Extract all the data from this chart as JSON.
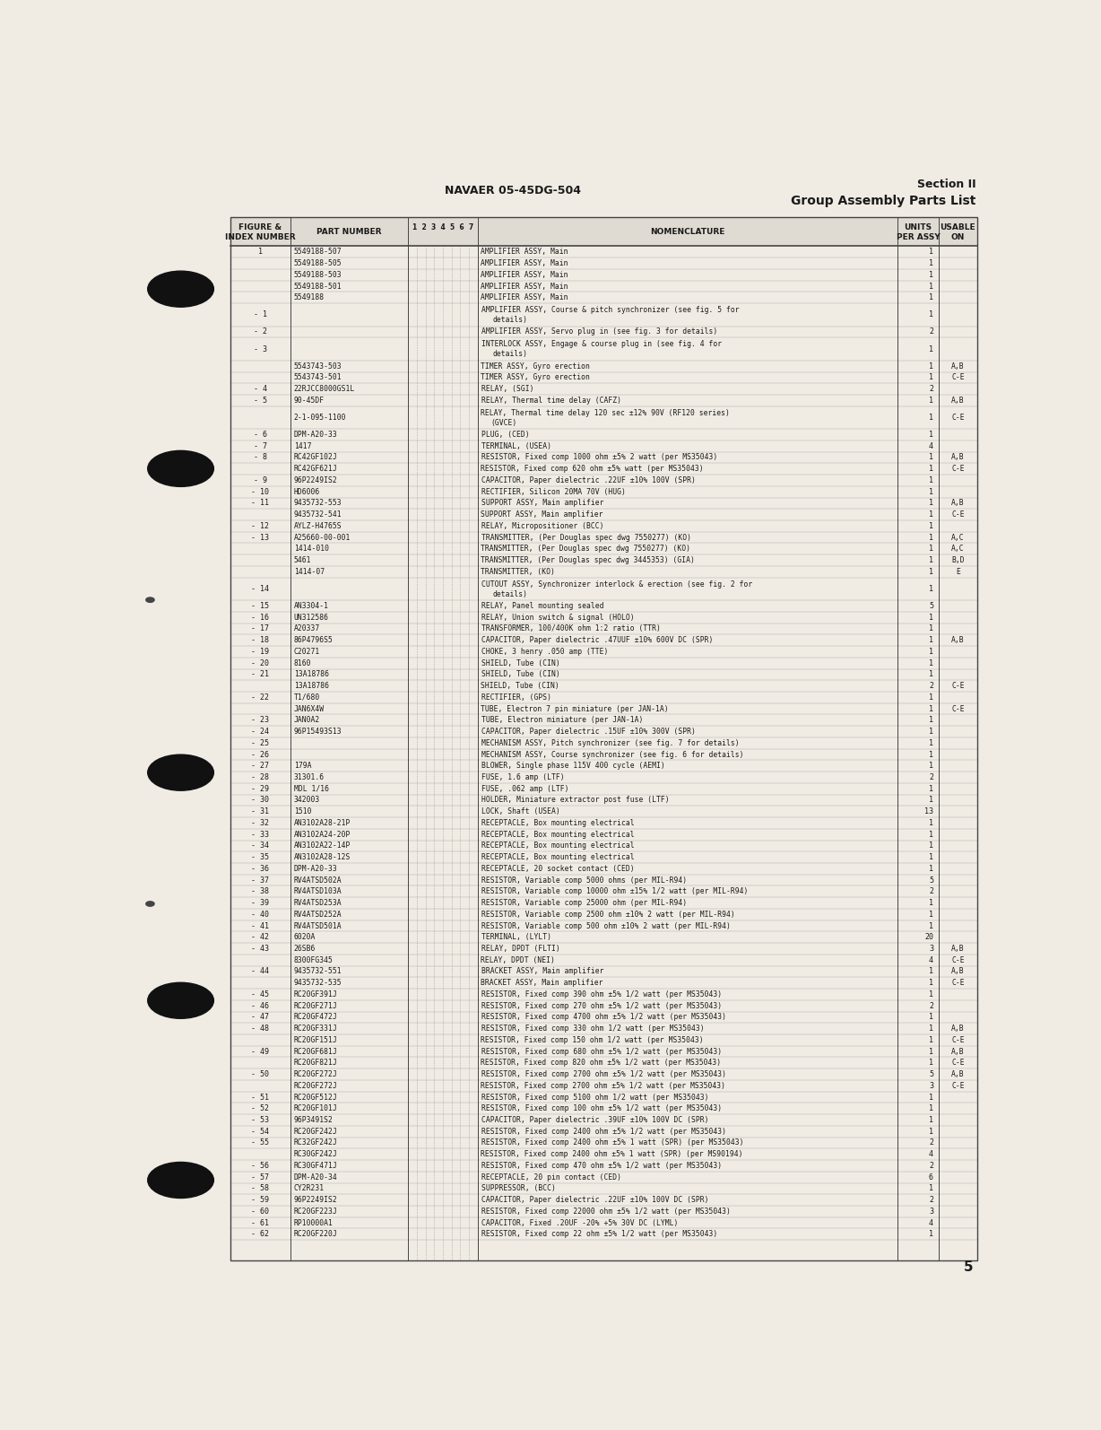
{
  "header_left": "NAVAER 05-45DG-504",
  "header_right_line1": "Section II",
  "header_right_line2": "Group Assembly Parts List",
  "col_headers": [
    "FIGURE &\nINDEX NUMBER",
    "PART NUMBER",
    "1  2  3  4  5  6  7",
    "NOMENCLATURE",
    "UNITS\nPER ASSY",
    "USABLE\nON"
  ],
  "page_number": "5",
  "rows": [
    [
      "1",
      "5549188-507",
      "AMPLIFIER ASSY, Main",
      "1",
      ""
    ],
    [
      "",
      "5549188-505",
      "AMPLIFIER ASSY, Main",
      "1",
      ""
    ],
    [
      "",
      "5549188-503",
      "AMPLIFIER ASSY, Main",
      "1",
      ""
    ],
    [
      "",
      "5549188-501",
      "AMPLIFIER ASSY, Main",
      "1",
      ""
    ],
    [
      "",
      "5549188",
      "AMPLIFIER ASSY, Main",
      "1",
      ""
    ],
    [
      "- 1",
      "",
      "AMPLIFIER ASSY, Course & pitch synchronizer (see fig. 5 for\n     details)",
      "1",
      ""
    ],
    [
      "- 2",
      "",
      "AMPLIFIER ASSY, Servo plug in (see fig. 3 for details)",
      "2",
      ""
    ],
    [
      "- 3",
      "",
      "INTERLOCK ASSY, Engage & course plug in (see fig. 4 for\n     details)",
      "1",
      ""
    ],
    [
      "",
      "5543743-503",
      "TIMER ASSY, Gyro erection",
      "1",
      "A,B"
    ],
    [
      "",
      "5543743-501",
      "TIMER ASSY, Gyro erection",
      "1",
      "C-E"
    ],
    [
      "- 4",
      "22RJCC8000GS1L",
      "RELAY, (SGI)",
      "2",
      ""
    ],
    [
      "- 5",
      "90-45DF",
      "RELAY, Thermal time delay (CAFZ)",
      "1",
      "A,B"
    ],
    [
      "",
      "2-1-095-1100",
      "RELAY, Thermal time delay 120 sec ±12% 90V (RF120 series)\n     (GVCE)",
      "1",
      "C-E"
    ],
    [
      "- 6",
      "DPM-A20-33",
      "PLUG, (CED)",
      "1",
      ""
    ],
    [
      "- 7",
      "1417",
      "TERMINAL, (USEA)",
      "4",
      ""
    ],
    [
      "- 8",
      "RC42GF102J",
      "RESISTOR, Fixed comp 1000 ohm ±5% 2 watt (per MS35043)",
      "1",
      "A,B"
    ],
    [
      "",
      "RC42GF621J",
      "RESISTOR, Fixed comp 620 ohm ±5% watt (per MS35043)",
      "1",
      "C-E"
    ],
    [
      "- 9",
      "96P2249IS2",
      "CAPACITOR, Paper dielectric .22UF ±10% 100V (SPR)",
      "1",
      ""
    ],
    [
      "- 10",
      "HD6006",
      "RECTIFIER, Silicon 20MA 70V (HUG)",
      "1",
      ""
    ],
    [
      "- 11",
      "9435732-553",
      "SUPPORT ASSY, Main amplifier",
      "1",
      "A,B"
    ],
    [
      "",
      "9435732-541",
      "SUPPORT ASSY, Main amplifier",
      "1",
      "C-E"
    ],
    [
      "- 12",
      "AYLZ-H4765S",
      "RELAY, Micropositioner (BCC)",
      "1",
      ""
    ],
    [
      "- 13",
      "A25660-00-001",
      "TRANSMITTER, (Per Douglas spec dwg 7550277) (KO)",
      "1",
      "A,C"
    ],
    [
      "",
      "1414-010",
      "TRANSMITTER, (Per Douglas spec dwg 7550277) (KO)",
      "1",
      "A,C"
    ],
    [
      "",
      "5461",
      "TRANSMITTER, (Per Douglas spec dwg 3445353) (GIA)",
      "1",
      "B,D"
    ],
    [
      "",
      "1414-07",
      "TRANSMITTER, (KO)",
      "1",
      "E"
    ],
    [
      "- 14",
      "",
      "CUTOUT ASSY, Synchronizer interlock & erection (see fig. 2 for\n     details)",
      "1",
      ""
    ],
    [
      "- 15",
      "AN3304-1",
      "RELAY, Panel mounting sealed",
      "5",
      ""
    ],
    [
      "- 16",
      "UN312586",
      "RELAY, Union switch & signal (HOLO)",
      "1",
      ""
    ],
    [
      "- 17",
      "A20337",
      "TRANSFORMER, 100/400K ohm 1:2 ratio (TTR)",
      "1",
      ""
    ],
    [
      "- 18",
      "86P4796S5",
      "CAPACITOR, Paper dielectric .47UUF ±10% 600V DC (SPR)",
      "1",
      "A,B"
    ],
    [
      "- 19",
      "C20271",
      "CHOKE, 3 henry .050 amp (TTE)",
      "1",
      ""
    ],
    [
      "- 20",
      "8160",
      "SHIELD, Tube (CIN)",
      "1",
      ""
    ],
    [
      "- 21",
      "13A18786",
      "SHIELD, Tube (CIN)",
      "1",
      ""
    ],
    [
      "",
      "13A18786",
      "SHIELD, Tube (CIN)",
      "2",
      "C-E"
    ],
    [
      "- 22",
      "T1/680",
      "RECTIFIER, (GPS)",
      "1",
      ""
    ],
    [
      "",
      "JAN6X4W",
      "TUBE, Electron 7 pin miniature (per JAN-1A)",
      "1",
      "C-E"
    ],
    [
      "- 23",
      "JAN0A2",
      "TUBE, Electron miniature (per JAN-1A)",
      "1",
      ""
    ],
    [
      "- 24",
      "96P15493S13",
      "CAPACITOR, Paper dielectric .15UF ±10% 300V (SPR)",
      "1",
      ""
    ],
    [
      "- 25",
      "",
      "MECHANISM ASSY, Pitch synchronizer (see fig. 7 for details)",
      "1",
      ""
    ],
    [
      "- 26",
      "",
      "MECHANISM ASSY, Course synchronizer (see fig. 6 for details)",
      "1",
      ""
    ],
    [
      "- 27",
      "179A",
      "BLOWER, Single phase 115V 400 cycle (AEMI)",
      "1",
      ""
    ],
    [
      "- 28",
      "31301.6",
      "FUSE, 1.6 amp (LTF)",
      "2",
      ""
    ],
    [
      "- 29",
      "MDL 1/16",
      "FUSE, .062 amp (LTF)",
      "1",
      ""
    ],
    [
      "- 30",
      "342003",
      "HOLDER, Miniature extractor post fuse (LTF)",
      "1",
      ""
    ],
    [
      "- 31",
      "1510",
      "LOCK, Shaft (USEA)",
      "13",
      ""
    ],
    [
      "- 32",
      "AN3102A28-21P",
      "RECEPTACLE, Box mounting electrical",
      "1",
      ""
    ],
    [
      "- 33",
      "AN3102A24-20P",
      "RECEPTACLE, Box mounting electrical",
      "1",
      ""
    ],
    [
      "- 34",
      "AN3102A22-14P",
      "RECEPTACLE, Box mounting electrical",
      "1",
      ""
    ],
    [
      "- 35",
      "AN3102A28-12S",
      "RECEPTACLE, Box mounting electrical",
      "1",
      ""
    ],
    [
      "- 36",
      "DPM-A20-33",
      "RECEPTACLE, 20 socket contact (CED)",
      "1",
      ""
    ],
    [
      "- 37",
      "RV4ATSD502A",
      "RESISTOR, Variable comp 5000 ohms (per MIL-R94)",
      "5",
      ""
    ],
    [
      "- 38",
      "RV4ATSD103A",
      "RESISTOR, Variable comp 10000 ohm ±15% 1/2 watt (per MIL-R94)",
      "2",
      ""
    ],
    [
      "- 39",
      "RV4ATSD253A",
      "RESISTOR, Variable comp 25000 ohm (per MIL-R94)",
      "1",
      ""
    ],
    [
      "- 40",
      "RV4ATSD252A",
      "RESISTOR, Variable comp 2500 ohm ±10% 2 watt (per MIL-R94)",
      "1",
      ""
    ],
    [
      "- 41",
      "RV4ATSD501A",
      "RESISTOR, Variable comp 500 ohm ±10% 2 watt (per MIL-R94)",
      "1",
      ""
    ],
    [
      "- 42",
      "6020A",
      "TERMINAL, (LYLT)",
      "20",
      ""
    ],
    [
      "- 43",
      "26SB6",
      "RELAY, DPDT (FLTI)",
      "3",
      "A,B"
    ],
    [
      "",
      "8300FG345",
      "RELAY, DPDT (NEI)",
      "4",
      "C-E"
    ],
    [
      "- 44",
      "9435732-551",
      "BRACKET ASSY, Main amplifier",
      "1",
      "A,B"
    ],
    [
      "",
      "9435732-535",
      "BRACKET ASSY, Main amplifier",
      "1",
      "C-E"
    ],
    [
      "- 45",
      "RC20GF391J",
      "RESISTOR, Fixed comp 390 ohm ±5% 1/2 watt (per MS35043)",
      "1",
      ""
    ],
    [
      "- 46",
      "RC20GF271J",
      "RESISTOR, Fixed comp 270 ohm ±5% 1/2 watt (per MS35043)",
      "2",
      ""
    ],
    [
      "- 47",
      "RC20GF472J",
      "RESISTOR, Fixed comp 4700 ohm ±5% 1/2 watt (per MS35043)",
      "1",
      ""
    ],
    [
      "- 48",
      "RC20GF331J",
      "RESISTOR, Fixed comp 330 ohm 1/2 watt (per MS35043)",
      "1",
      "A,B"
    ],
    [
      "",
      "RC20GF151J",
      "RESISTOR, Fixed comp 150 ohm 1/2 watt (per MS35043)",
      "1",
      "C-E"
    ],
    [
      "- 49",
      "RC20GF681J",
      "RESISTOR, Fixed comp 680 ohm ±5% 1/2 watt (per MS35043)",
      "1",
      "A,B"
    ],
    [
      "",
      "RC20GF821J",
      "RESISTOR, Fixed comp 820 ohm ±5% 1/2 watt (per MS35043)",
      "1",
      "C-E"
    ],
    [
      "- 50",
      "RC20GF272J",
      "RESISTOR, Fixed comp 2700 ohm ±5% 1/2 watt (per MS35043)",
      "5",
      "A,B"
    ],
    [
      "",
      "RC20GF272J",
      "RESISTOR, Fixed comp 2700 ohm ±5% 1/2 watt (per MS35043)",
      "3",
      "C-E"
    ],
    [
      "- 51",
      "RC20GF512J",
      "RESISTOR, Fixed comp 5100 ohm 1/2 watt (per MS35043)",
      "1",
      ""
    ],
    [
      "- 52",
      "RC20GF101J",
      "RESISTOR, Fixed comp 100 ohm ±5% 1/2 watt (per MS35043)",
      "1",
      ""
    ],
    [
      "- 53",
      "96P3491S2",
      "CAPACITOR, Paper dielectric .39UF ±10% 100V DC (SPR)",
      "1",
      ""
    ],
    [
      "- 54",
      "RC20GF242J",
      "RESISTOR, Fixed comp 2400 ohm ±5% 1/2 watt (per MS35043)",
      "1",
      ""
    ],
    [
      "- 55",
      "RC32GF242J",
      "RESISTOR, Fixed comp 2400 ohm ±5% 1 watt (SPR) (per MS35043)",
      "2",
      ""
    ],
    [
      "",
      "RC30GF242J",
      "RESISTOR, Fixed comp 2400 ohm ±5% 1 watt (SPR) (per MS90194)",
      "4",
      ""
    ],
    [
      "- 56",
      "RC30GF471J",
      "RESISTOR, Fixed comp 470 ohm ±5% 1/2 watt (per MS35043)",
      "2",
      ""
    ],
    [
      "- 57",
      "DPM-A20-34",
      "RECEPTACLE, 20 pin contact (CED)",
      "6",
      ""
    ],
    [
      "- 58",
      "CY2R231",
      "SUPPRESSOR, (BCC)",
      "1",
      ""
    ],
    [
      "- 59",
      "96P2249IS2",
      "CAPACITOR, Paper dielectric .22UF ±10% 100V DC (SPR)",
      "2",
      ""
    ],
    [
      "- 60",
      "RC20GF223J",
      "RESISTOR, Fixed comp 22000 ohm ±5% 1/2 watt (per MS35043)",
      "3",
      ""
    ],
    [
      "- 61",
      "RP10000A1",
      "CAPACITOR, Fixed .20UF -20% +5% 30V DC (LYML)",
      "4",
      ""
    ],
    [
      "- 62",
      "RC20GF220J",
      "RESISTOR, Fixed comp 22 ohm ±5% 1/2 watt (per MS35043)",
      "1",
      ""
    ]
  ],
  "bg_color": "#f0ece4",
  "text_color": "#1a1a1a",
  "line_color": "#444444",
  "header_bg": "#e0dbd2"
}
